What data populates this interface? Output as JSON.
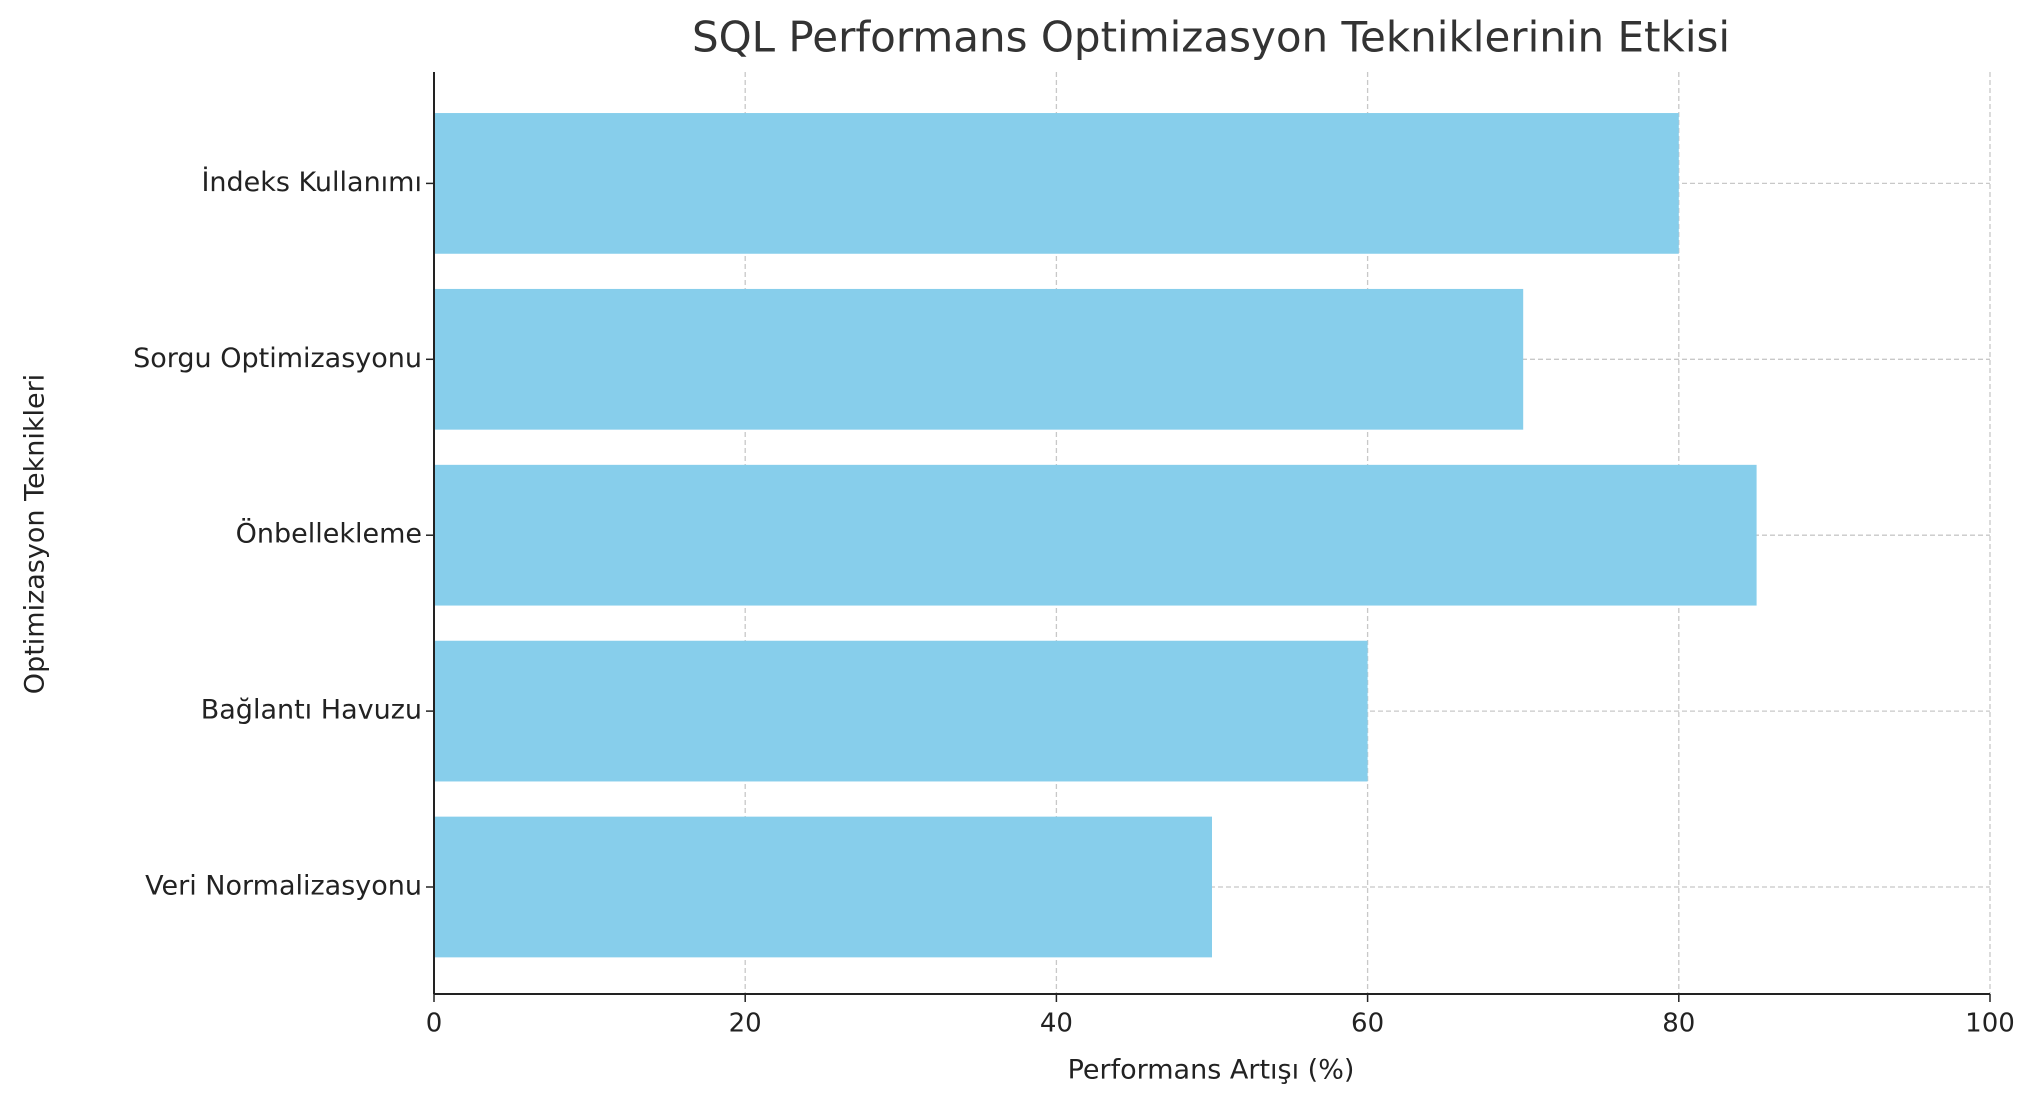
{
  "chart_data": {
    "type": "barh",
    "title": "SQL Performans Optimizasyon Tekniklerinin Etkisi",
    "x_label": "Performans Artışı (%)",
    "y_label": "Optimizasyon Teknikleri",
    "categories": [
      "Veri Normalizasyonu",
      "Bağlantı Havuzu",
      "Önbellekleme",
      "Sorgu Optimizasyonu",
      "İndeks Kullanımı"
    ],
    "values": [
      50,
      60,
      85,
      70,
      80
    ],
    "color": "#87ceeb",
    "xlim": [
      0,
      100
    ],
    "xticks": [
      0,
      20,
      40,
      60,
      80,
      100
    ],
    "grid": true
  }
}
